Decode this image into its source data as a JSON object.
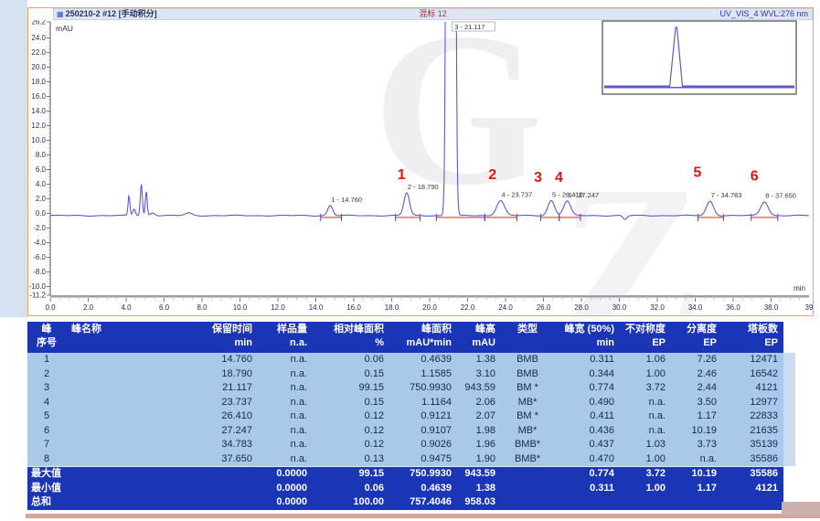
{
  "chart_data": {
    "type": "line",
    "title": "250210-2 #12 [手动积分]",
    "sample_label": "混标 12",
    "channel_label": "UV_VIS_4 WVL:276 nm",
    "xlabel": "min",
    "ylabel": "mAU",
    "xlim": [
      0.0,
      40.0
    ],
    "ylim": [
      -11.2,
      26.2
    ],
    "x_major_ticks": [
      0,
      2,
      4,
      6,
      8,
      10,
      12,
      14,
      16,
      18,
      20,
      22,
      24,
      26,
      28,
      30,
      32,
      34,
      36,
      38
    ],
    "x_axis_end_label": "39",
    "y_major_ticks": [
      26.2,
      24,
      22,
      20,
      18,
      16,
      14,
      12,
      10,
      8,
      6,
      4,
      2,
      0,
      -2,
      -4,
      -6,
      -8,
      -10,
      -11.2
    ],
    "baseline_mau": -0.3,
    "grid": "off",
    "peaks": [
      {
        "peak_no": 1,
        "rt_min": 14.76,
        "height_mau": 1.38,
        "sigma_min": 0.132,
        "annotation": "1 - 14.760"
      },
      {
        "peak_no": 2,
        "rt_min": 18.79,
        "height_mau": 3.1,
        "sigma_min": 0.146,
        "annotation": "2 - 18.790"
      },
      {
        "peak_no": 3,
        "rt_min": 21.117,
        "height_mau": 943.59,
        "sigma_min": 0.11,
        "annotation": "3 - 21.117",
        "offscale": true
      },
      {
        "peak_no": 4,
        "rt_min": 23.737,
        "height_mau": 2.06,
        "sigma_min": 0.208,
        "annotation": "4 - 23.737"
      },
      {
        "peak_no": 5,
        "rt_min": 26.41,
        "height_mau": 2.07,
        "sigma_min": 0.175,
        "annotation": "5 - 26.410"
      },
      {
        "peak_no": 6,
        "rt_min": 27.247,
        "height_mau": 1.98,
        "sigma_min": 0.185,
        "annotation": "6 - 27.247"
      },
      {
        "peak_no": 7,
        "rt_min": 34.783,
        "height_mau": 1.96,
        "sigma_min": 0.186,
        "annotation": "7 - 34.783"
      },
      {
        "peak_no": 8,
        "rt_min": 37.65,
        "height_mau": 1.9,
        "sigma_min": 0.2,
        "annotation": "8 - 37.650"
      }
    ],
    "red_labels": [
      {
        "text": "1",
        "x_min": 18.3,
        "y_mau": 4.7
      },
      {
        "text": "2",
        "x_min": 23.1,
        "y_mau": 4.7
      },
      {
        "text": "3",
        "x_min": 25.5,
        "y_mau": 4.3
      },
      {
        "text": "4",
        "x_min": 26.6,
        "y_mau": 4.3
      },
      {
        "text": "5",
        "x_min": 33.9,
        "y_mau": 5.0
      },
      {
        "text": "6",
        "x_min": 36.9,
        "y_mau": 4.5
      }
    ],
    "minor_features": [
      {
        "rt": 4.15,
        "h": 2.7,
        "s": 0.05
      },
      {
        "rt": 4.42,
        "h": 0.9,
        "s": 0.07
      },
      {
        "rt": 4.8,
        "h": 4.3,
        "s": 0.055
      },
      {
        "rt": 5.06,
        "h": 3.3,
        "s": 0.05
      },
      {
        "rt": 5.4,
        "h": 0.4,
        "s": 0.12
      },
      {
        "rt": 7.3,
        "h": 0.35,
        "s": 0.18
      },
      {
        "rt": 30.3,
        "h": -0.55,
        "s": 0.1
      }
    ],
    "integration_segments": [
      [
        14.25,
        15.35
      ],
      [
        18.2,
        19.5
      ],
      [
        20.35,
        22.9
      ],
      [
        22.9,
        24.6
      ],
      [
        25.85,
        26.83
      ],
      [
        26.83,
        27.95
      ],
      [
        34.15,
        35.5
      ],
      [
        36.95,
        38.35
      ]
    ],
    "inset": {
      "description": "full-scale overview with single dominant peak",
      "peak_frac": 0.38
    }
  },
  "table": {
    "headers": [
      {
        "title": "峰",
        "unit": "序号"
      },
      {
        "title": "峰名称",
        "unit": ""
      },
      {
        "title": "保留时间",
        "unit": "min"
      },
      {
        "title": "样品量",
        "unit": "n.a."
      },
      {
        "title": "相对峰面积",
        "unit": "%"
      },
      {
        "title": "峰面积",
        "unit": "mAU*min"
      },
      {
        "title": "峰高",
        "unit": "mAU"
      },
      {
        "title": "类型",
        "unit": ""
      },
      {
        "title": "峰宽 (50%)",
        "unit": "min"
      },
      {
        "title": "不对称度",
        "unit": "EP"
      },
      {
        "title": "分离度",
        "unit": "EP"
      },
      {
        "title": "塔板数",
        "unit": "EP"
      }
    ],
    "rows": [
      [
        "1",
        "",
        "14.760",
        "n.a.",
        "0.06",
        "0.4639",
        "1.38",
        "BMB",
        "0.311",
        "1.06",
        "7.26",
        "12471"
      ],
      [
        "2",
        "",
        "18.790",
        "n.a.",
        "0.15",
        "1.1585",
        "3.10",
        "BMB",
        "0.344",
        "1.00",
        "2.46",
        "16542"
      ],
      [
        "3",
        "",
        "21.117",
        "n.a.",
        "99.15",
        "750.9930",
        "943.59",
        "BM *",
        "0.774",
        "3.72",
        "2.44",
        "4121"
      ],
      [
        "4",
        "",
        "23.737",
        "n.a.",
        "0.15",
        "1.1164",
        "2.06",
        "MB*",
        "0.490",
        "n.a.",
        "3.50",
        "12977"
      ],
      [
        "5",
        "",
        "26.410",
        "n.a.",
        "0.12",
        "0.9121",
        "2.07",
        "BM *",
        "0.411",
        "n.a.",
        "1.17",
        "22833"
      ],
      [
        "6",
        "",
        "27.247",
        "n.a.",
        "0.12",
        "0.9107",
        "1.98",
        "MB*",
        "0.436",
        "n.a.",
        "10.19",
        "21635"
      ],
      [
        "7",
        "",
        "34.783",
        "n.a.",
        "0.12",
        "0.9026",
        "1.96",
        "BMB*",
        "0.437",
        "1.03",
        "3.73",
        "35139"
      ],
      [
        "8",
        "",
        "37.650",
        "n.a.",
        "0.13",
        "0.9475",
        "1.90",
        "BMB*",
        "0.470",
        "1.00",
        "n.a.",
        "35586"
      ]
    ],
    "summary_rows": [
      {
        "label": "最大值",
        "cells": [
          "",
          "0.0000",
          "99.15",
          "750.9930",
          "943.59",
          "",
          "0.774",
          "3.72",
          "10.19",
          "35586"
        ]
      },
      {
        "label": "最小值",
        "cells": [
          "",
          "0.0000",
          "0.06",
          "0.4639",
          "1.38",
          "",
          "0.311",
          "1.00",
          "1.17",
          "4121"
        ]
      },
      {
        "label": "总和",
        "cells": [
          "",
          "0.0000",
          "100.00",
          "757.4046",
          "958.03",
          "",
          "",
          "",
          "",
          ""
        ]
      }
    ]
  },
  "colors": {
    "trace": "#5b59d4",
    "red_label": "#e01414",
    "integration_baseline": "#de5948",
    "table_header_bg": "#1b35b7",
    "table_row_bg": "#aac9ea",
    "frame_border": "#dcaa62",
    "titlebar_bg": "#dfe4f7"
  }
}
